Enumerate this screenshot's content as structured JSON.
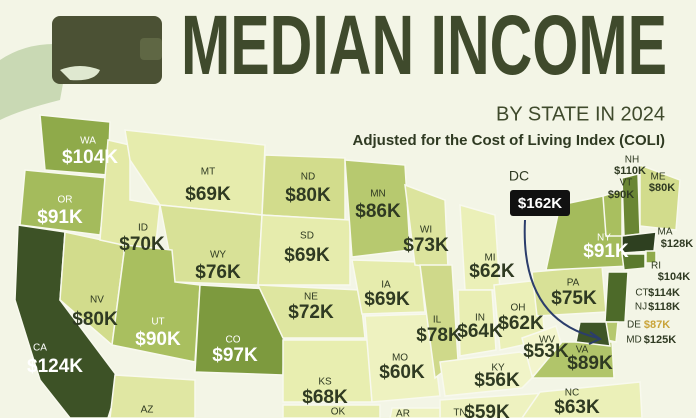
{
  "header": {
    "title": "MEDIAN INCOME",
    "subtitle": "BY STATE IN 2024",
    "note": "Adjusted for the Cost of Living Index (COLI)"
  },
  "states": [
    {
      "abbr": "WA",
      "label": "$104K"
    },
    {
      "abbr": "OR",
      "label": "$91K"
    },
    {
      "abbr": "CA",
      "label": "$124K"
    },
    {
      "abbr": "NV",
      "label": "$80K"
    },
    {
      "abbr": "ID",
      "label": "$70K"
    },
    {
      "abbr": "MT",
      "label": "$69K"
    },
    {
      "abbr": "WY",
      "label": "$76K"
    },
    {
      "abbr": "UT",
      "label": "$90K"
    },
    {
      "abbr": "CO",
      "label": "$97K"
    },
    {
      "abbr": "ND",
      "label": "$80K"
    },
    {
      "abbr": "SD",
      "label": "$69K"
    },
    {
      "abbr": "NE",
      "label": "$72K"
    },
    {
      "abbr": "KS",
      "label": "$68K"
    },
    {
      "abbr": "MN",
      "label": "$86K"
    },
    {
      "abbr": "IA",
      "label": "$69K"
    },
    {
      "abbr": "MO",
      "label": "$60K"
    },
    {
      "abbr": "WI",
      "label": "$73K"
    },
    {
      "abbr": "IL",
      "label": "$78K"
    },
    {
      "abbr": "MI",
      "label": "$62K"
    },
    {
      "abbr": "IN",
      "label": "$64K"
    },
    {
      "abbr": "OH",
      "label": "$62K"
    },
    {
      "abbr": "KY",
      "label": "$56K"
    },
    {
      "abbr": "TN",
      "label": "$59K"
    },
    {
      "abbr": "WV",
      "label": "$53K"
    },
    {
      "abbr": "VA",
      "label": "$89K"
    },
    {
      "abbr": "NC",
      "label": "$63K"
    },
    {
      "abbr": "PA",
      "label": "$75K"
    },
    {
      "abbr": "NY",
      "label": "$91K"
    },
    {
      "abbr": "ME",
      "label": "$80K"
    },
    {
      "abbr": "NH",
      "label": "$110K"
    },
    {
      "abbr": "VT",
      "label": "$90K"
    },
    {
      "abbr": "MA",
      "label": "$128K"
    },
    {
      "abbr": "RI",
      "label": "$104K"
    },
    {
      "abbr": "CT",
      "label": "$114K"
    },
    {
      "abbr": "NJ",
      "label": "$118K"
    },
    {
      "abbr": "DE",
      "label": "$87K"
    },
    {
      "abbr": "MD",
      "label": "$125K"
    },
    {
      "abbr": "AZ"
    },
    {
      "abbr": "OK"
    },
    {
      "abbr": "AR"
    }
  ],
  "callout": {
    "abbr": "DC",
    "label": "$162K"
  }
}
